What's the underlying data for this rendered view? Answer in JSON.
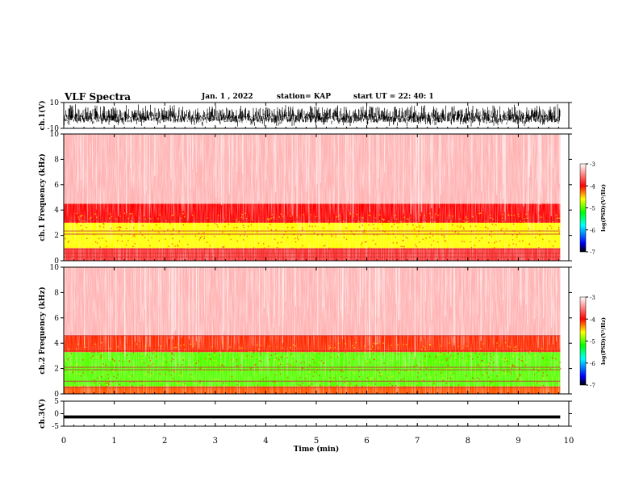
{
  "header": {
    "title": "VLF Spectra",
    "date": "Jan. 1 , 2022",
    "station": "station= KAP",
    "start": "start UT = 22: 40: 1"
  },
  "chart_data": [
    {
      "type": "line",
      "panel": "ch1-waveform",
      "ylabel": "ch.1(V)",
      "ylim": [
        -10,
        10
      ],
      "yticks": [
        -10,
        10
      ],
      "x_range_min": [
        0,
        9.83
      ],
      "trace": "dense broadband noise, amplitude mostly between -9 and 9 V"
    },
    {
      "type": "heatmap",
      "panel": "ch1-spectrogram",
      "ylabel": "ch.1 Frequency (kHz)",
      "ylim": [
        0,
        10
      ],
      "yticks": [
        0,
        2,
        4,
        6,
        8,
        10
      ],
      "colorbar": {
        "label": "log(PSD)(V²/Hz)",
        "range": [
          -7,
          -3
        ],
        "ticks": [
          -7,
          -6,
          -5,
          -4,
          -3
        ]
      },
      "bands_khz": [
        {
          "from": 0,
          "to": 1.0,
          "level": -3.8
        },
        {
          "from": 1.0,
          "to": 3.0,
          "level": -4.6
        },
        {
          "from": 3.0,
          "to": 4.5,
          "level": -4.0
        },
        {
          "from": 4.5,
          "to": 10.0,
          "level": -3.3
        }
      ],
      "lines_khz": [
        0.3,
        0.6,
        0.9,
        2.1,
        2.35,
        3.2
      ]
    },
    {
      "type": "heatmap",
      "panel": "ch2-spectrogram",
      "ylabel": "ch.2 Frequency (kHz)",
      "ylim": [
        0,
        10
      ],
      "yticks": [
        0,
        2,
        4,
        6,
        8,
        10
      ],
      "colorbar": {
        "label": "log(PSD)(V²/Hz)",
        "range": [
          -7,
          -3
        ],
        "ticks": [
          -7,
          -6,
          -5,
          -4,
          -3
        ]
      },
      "bands_khz": [
        {
          "from": 0,
          "to": 0.6,
          "level": -4.2
        },
        {
          "from": 0.6,
          "to": 3.3,
          "level": -5.0
        },
        {
          "from": 3.3,
          "to": 4.6,
          "level": -4.1
        },
        {
          "from": 4.6,
          "to": 10.0,
          "level": -3.3
        }
      ],
      "lines_khz": [
        0.5,
        1.0,
        1.9,
        2.1,
        3.4,
        4.6
      ]
    },
    {
      "type": "line",
      "panel": "ch3-waveform",
      "ylabel": "ch.3(V)",
      "ylim": [
        -5,
        5
      ],
      "yticks": [
        -5,
        0,
        5
      ],
      "x_range_min": [
        0,
        9.83
      ],
      "trace": "thin flat band around -1.2 V"
    }
  ],
  "xaxis": {
    "label": "Time (min)",
    "range": [
      0,
      10
    ],
    "ticks": [
      0,
      1,
      2,
      3,
      4,
      5,
      6,
      7,
      8,
      9,
      10
    ]
  }
}
